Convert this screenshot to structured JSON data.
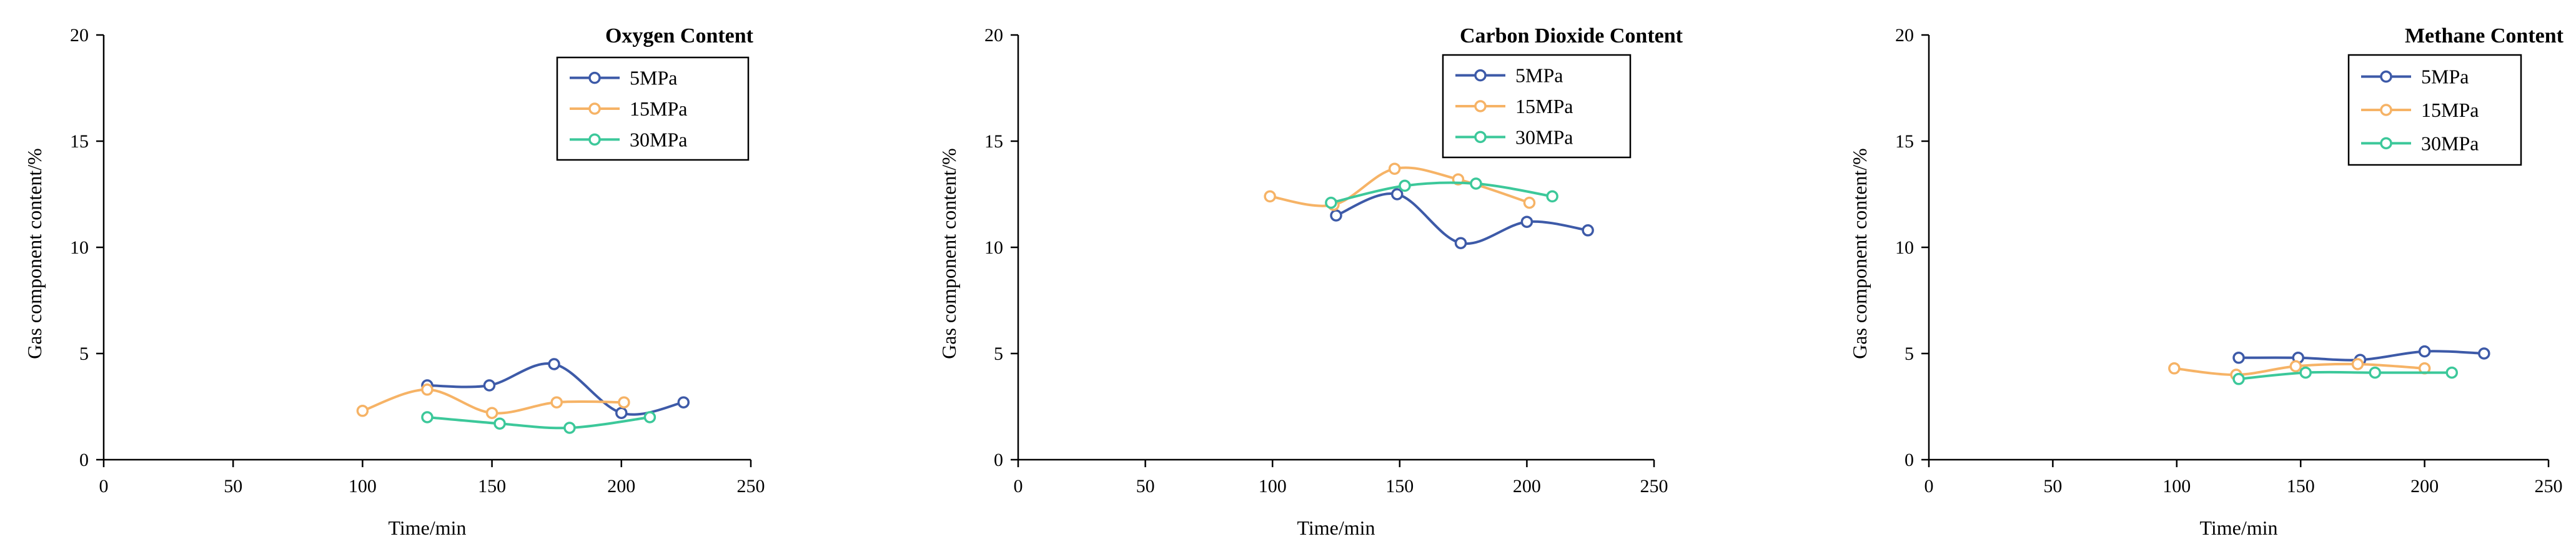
{
  "chart_data": [
    {
      "type": "line",
      "title": "Oxygen Content",
      "xlabel": "Time/min",
      "ylabel": "Gas component content/%",
      "xlim": [
        0,
        250
      ],
      "ylim": [
        0,
        20
      ],
      "xticks": [
        0,
        50,
        100,
        150,
        200,
        250
      ],
      "yticks": [
        0,
        5,
        10,
        15,
        20
      ],
      "legend": "top-right",
      "grid": false,
      "series": [
        {
          "name": "5MPa",
          "color": "#3D5AA8",
          "x": [
            125,
            149,
            174,
            200,
            224
          ],
          "y": [
            3.5,
            3.5,
            4.5,
            2.2,
            2.7
          ]
        },
        {
          "name": "15MPa",
          "color": "#F6B366",
          "x": [
            100,
            125,
            150,
            175,
            201
          ],
          "y": [
            2.3,
            3.3,
            2.2,
            2.7,
            2.7
          ]
        },
        {
          "name": "30MPa",
          "color": "#3CC89A",
          "x": [
            125,
            153,
            180,
            211
          ],
          "y": [
            2.0,
            1.7,
            1.5,
            2.0
          ]
        }
      ]
    },
    {
      "type": "line",
      "title": "Carbon Dioxide Content",
      "xlabel": "Time/min",
      "ylabel": "Gas component content/%",
      "xlim": [
        0,
        250
      ],
      "ylim": [
        0,
        20
      ],
      "xticks": [
        0,
        50,
        100,
        150,
        200,
        250
      ],
      "yticks": [
        0,
        5,
        10,
        15,
        20
      ],
      "legend": "top-right",
      "grid": false,
      "series": [
        {
          "name": "5MPa",
          "color": "#3D5AA8",
          "x": [
            125,
            149,
            174,
            200,
            224
          ],
          "y": [
            11.5,
            12.5,
            10.2,
            11.2,
            10.8
          ]
        },
        {
          "name": "15MPa",
          "color": "#F6B366",
          "x": [
            99,
            124,
            148,
            173,
            201
          ],
          "y": [
            12.4,
            12.0,
            13.7,
            13.2,
            12.1
          ]
        },
        {
          "name": "30MPa",
          "color": "#3CC89A",
          "x": [
            123,
            152,
            180,
            210
          ],
          "y": [
            12.1,
            12.9,
            13.0,
            12.4
          ]
        }
      ]
    },
    {
      "type": "line",
      "title": "Methane Content",
      "xlabel": "Time/min",
      "ylabel": "Gas component content/%",
      "xlim": [
        0,
        250
      ],
      "ylim": [
        0,
        20
      ],
      "xticks": [
        0,
        50,
        100,
        150,
        200,
        250
      ],
      "yticks": [
        0,
        5,
        10,
        15,
        20
      ],
      "legend": "top-right",
      "grid": false,
      "series": [
        {
          "name": "5MPa",
          "color": "#3D5AA8",
          "x": [
            125,
            149,
            174,
            200,
            224
          ],
          "y": [
            4.8,
            4.8,
            4.7,
            5.1,
            5.0
          ]
        },
        {
          "name": "15MPa",
          "color": "#F6B366",
          "x": [
            99,
            124,
            148,
            173,
            200
          ],
          "y": [
            4.3,
            4.0,
            4.4,
            4.5,
            4.3
          ]
        },
        {
          "name": "30MPa",
          "color": "#3CC89A",
          "x": [
            125,
            152,
            180,
            211
          ],
          "y": [
            3.8,
            4.1,
            4.1,
            4.1
          ]
        }
      ]
    }
  ]
}
